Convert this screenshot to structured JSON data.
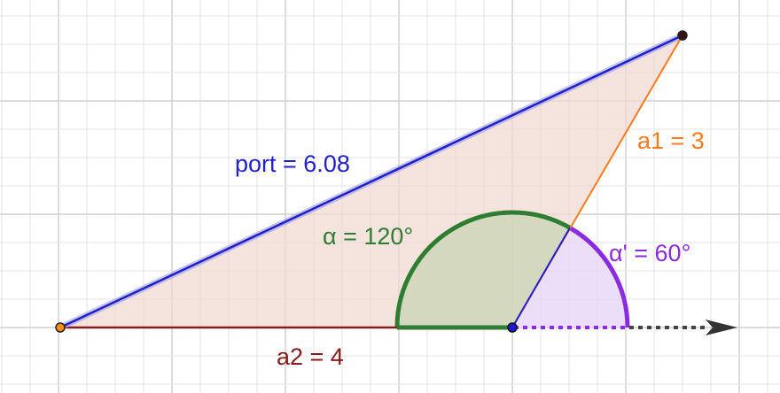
{
  "labels": {
    "port": "port = 6.08",
    "a1": "a1 = 3",
    "a2": "a2 = 4",
    "alpha": "α = 120°",
    "alpha_prime": "α' = 60°"
  },
  "colors": {
    "port": "#1f1fd0",
    "a1": "#ff7a1a",
    "a2": "#8b1a1a",
    "alpha": "#2e7d32",
    "alpha_prime": "#8a2be2",
    "triangle_fill": "#efd9cf",
    "grid_major": "#c8c8c8",
    "grid_minor": "#e6e6e6"
  },
  "figure": {
    "a1_length": 3,
    "a2_length": 4,
    "port_length": 6.08,
    "alpha_degrees": 120,
    "alpha_prime_degrees": 60
  }
}
